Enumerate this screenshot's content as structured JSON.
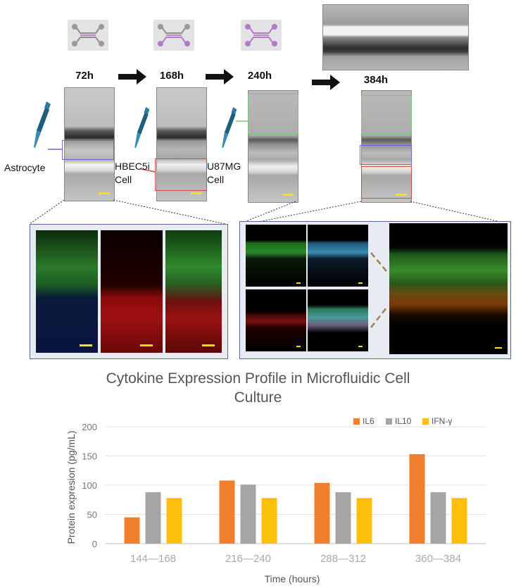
{
  "timeline": {
    "times": [
      "72h",
      "168h",
      "240h",
      "384h"
    ],
    "cell_labels": {
      "astrocyte": "Astrocyte",
      "hbec": [
        "HBEC5i",
        "Cell"
      ],
      "u87": [
        "U87MG",
        "Cell"
      ]
    }
  },
  "icons": {
    "arrow": "right-arrow-icon",
    "pipette": "pipette-icon",
    "chip": "microfluidic-chip-icon"
  },
  "colors": {
    "il6": "#f07f2e",
    "il10": "#a5a5a5",
    "ifn": "#fcbf0a",
    "box_blue": "#6a6ad8",
    "box_red": "#d04848",
    "box_green": "#7ac47a",
    "scale": "#ffe000"
  },
  "chart_data": {
    "type": "bar",
    "title": "Cytokine Expression Profile in Microfluidic Cell Culture",
    "title_lines": [
      "Cytokine Expression Profile in Microfluidic Cell",
      "Culture"
    ],
    "xlabel": "Time (hours)",
    "ylabel": "Protein expresion (pg/mL)",
    "categories": [
      "144—168",
      "216—240",
      "288—312",
      "360—384"
    ],
    "series": [
      {
        "name": "IL6",
        "values": [
          45,
          108,
          104,
          153
        ]
      },
      {
        "name": "IL10",
        "values": [
          88,
          101,
          88,
          88
        ]
      },
      {
        "name": "IFN-γ",
        "values": [
          78,
          78,
          78,
          78
        ]
      }
    ],
    "ylim": [
      0,
      200
    ],
    "yticks": [
      "0",
      "50",
      "100",
      "150",
      "200"
    ],
    "legend": "top-right",
    "grid": true
  }
}
